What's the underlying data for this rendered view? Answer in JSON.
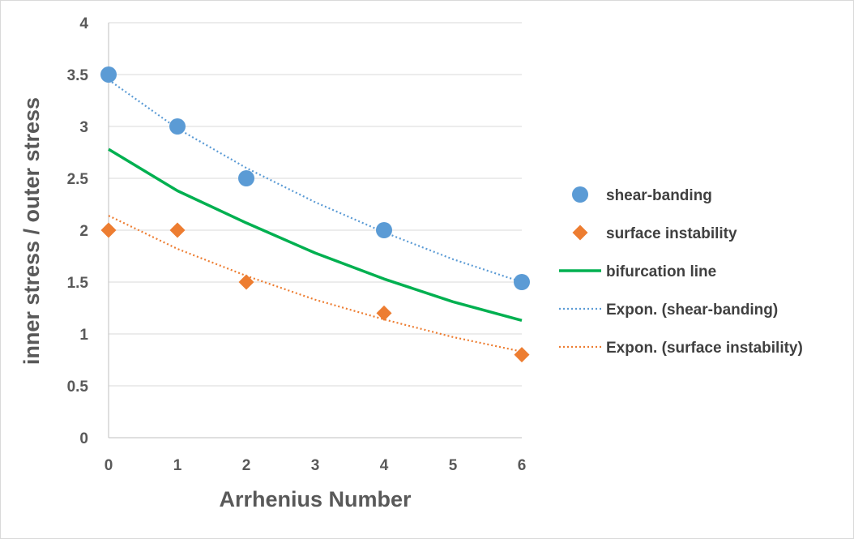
{
  "chart_data": {
    "type": "scatter",
    "xlabel": "Arrhenius Number",
    "ylabel": "inner stress / outer stress",
    "xlim": [
      0,
      6
    ],
    "ylim": [
      0,
      4
    ],
    "x_ticks": [
      "0",
      "1",
      "2",
      "3",
      "4",
      "5",
      "6"
    ],
    "y_ticks": [
      "0",
      "0.5",
      "1",
      "1.5",
      "2",
      "2.5",
      "3",
      "3.5",
      "4"
    ],
    "grid": "horizontal",
    "legend_position": "right",
    "series": [
      {
        "name": "shear-banding",
        "kind": "marker",
        "marker": "circle",
        "color": "#5b9bd5",
        "x": [
          0,
          1,
          2,
          4,
          6
        ],
        "y": [
          3.5,
          3.0,
          2.5,
          2.0,
          1.5
        ]
      },
      {
        "name": "surface instability",
        "kind": "marker",
        "marker": "diamond",
        "color": "#ed7d31",
        "x": [
          0,
          1,
          2,
          4,
          6
        ],
        "y": [
          2.0,
          2.0,
          1.5,
          1.2,
          0.8
        ]
      },
      {
        "name": "bifurcation line",
        "kind": "line",
        "style": "solid",
        "color": "#00b050",
        "x": [
          0,
          1,
          2,
          3,
          4,
          5,
          6
        ],
        "y": [
          2.78,
          2.38,
          2.07,
          1.78,
          1.53,
          1.31,
          1.13
        ]
      },
      {
        "name": "Expon.  (shear-banding)",
        "kind": "line",
        "style": "dotted",
        "color": "#5b9bd5",
        "x": [
          0,
          1,
          2,
          3,
          4,
          5,
          6
        ],
        "y": [
          3.45,
          2.98,
          2.6,
          2.27,
          1.98,
          1.72,
          1.5
        ]
      },
      {
        "name": "Expon.  (surface instability)",
        "kind": "line",
        "style": "dotted",
        "color": "#ed7d31",
        "x": [
          0,
          1,
          2,
          3,
          4,
          5,
          6
        ],
        "y": [
          2.14,
          1.82,
          1.56,
          1.33,
          1.14,
          0.97,
          0.83
        ]
      }
    ]
  }
}
